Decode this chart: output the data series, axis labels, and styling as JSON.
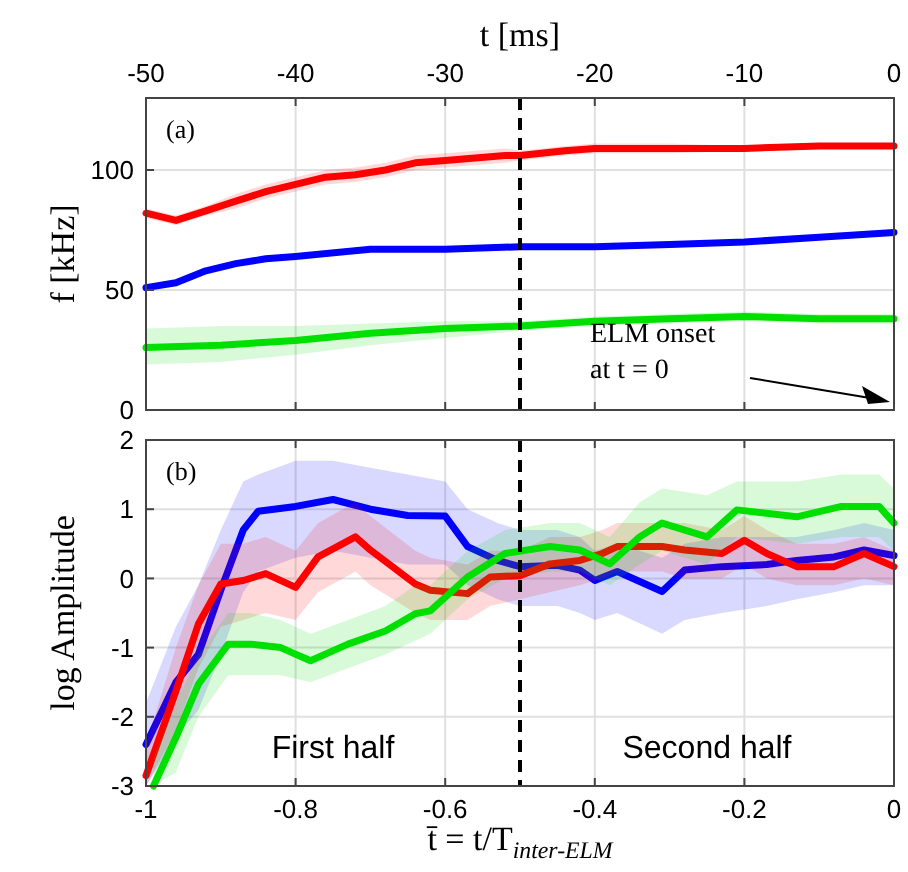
{
  "chart_data": [
    {
      "type": "line",
      "xlabel": "t [ms]",
      "ylabel": "f [kHz]",
      "xlim": [
        -50,
        0
      ],
      "xticks": [
        -50,
        -40,
        -30,
        -20,
        -10,
        0
      ],
      "ylim": [
        0,
        130
      ],
      "yticks": [
        0,
        50,
        100
      ],
      "grid": true,
      "line_style": "solid",
      "marker": "none",
      "annotations": [
        "(a)",
        "ELM onset\nat t = 0"
      ],
      "ref_lines": [
        {
          "axis": "x",
          "value": -25,
          "line_style": "dashed",
          "color": "#000000"
        }
      ],
      "series": [
        {
          "color": "#ff0000",
          "x": [
            -50,
            -48,
            -46,
            -44,
            -42,
            -40,
            -38,
            -36,
            -34,
            -32,
            -30,
            -28,
            -26,
            -25,
            -22,
            -20,
            -15,
            -10,
            -5,
            0
          ],
          "values": [
            82,
            79,
            83,
            87,
            91,
            94,
            97,
            98,
            100,
            103,
            104,
            105,
            106,
            106,
            108,
            109,
            109,
            109,
            110,
            110
          ],
          "lower": [
            80,
            77,
            81,
            84,
            88,
            91,
            94,
            95,
            97,
            100,
            101,
            102,
            103,
            104,
            106,
            107,
            107,
            108,
            109,
            109
          ],
          "upper": [
            84,
            81,
            85,
            90,
            94,
            97,
            100,
            101,
            103,
            106,
            107,
            108,
            109,
            108,
            110,
            111,
            111,
            110,
            111,
            111
          ]
        },
        {
          "color": "#0000ff",
          "x": [
            -50,
            -48,
            -46,
            -44,
            -42,
            -40,
            -35,
            -30,
            -25,
            -20,
            -15,
            -10,
            -5,
            0
          ],
          "values": [
            51,
            53,
            58,
            61,
            63,
            64,
            67,
            67,
            68,
            68,
            69,
            70,
            72,
            74
          ]
        },
        {
          "color": "#00e000",
          "x": [
            -50,
            -45,
            -40,
            -35,
            -30,
            -25,
            -20,
            -15,
            -10,
            -5,
            0
          ],
          "values": [
            26,
            27,
            29,
            32,
            34,
            35,
            37,
            38,
            39,
            38,
            38
          ],
          "lower": [
            19,
            20,
            23,
            27,
            30,
            33,
            35,
            36,
            37,
            36,
            36
          ],
          "upper": [
            34,
            35,
            35,
            36,
            37,
            37,
            39,
            40,
            41,
            40,
            40
          ]
        }
      ]
    },
    {
      "type": "line",
      "xlabel": "t̄ = t/T$_{inter-ELM}$",
      "ylabel": "log Amplitude",
      "xlim": [
        -1,
        0
      ],
      "xticks": [
        -1,
        -0.8,
        -0.6,
        -0.4,
        -0.2,
        0
      ],
      "ylim": [
        -3,
        2
      ],
      "yticks": [
        -3,
        -2,
        -1,
        0,
        1,
        2
      ],
      "grid": true,
      "line_style": "solid",
      "marker": "none",
      "annotations": [
        "(b)",
        "First half",
        "Second half"
      ],
      "ref_lines": [
        {
          "axis": "x",
          "value": -0.5,
          "line_style": "dashed",
          "color": "#000000"
        }
      ],
      "series": [
        {
          "color": "#0000ff",
          "x": [
            -1,
            -0.96,
            -0.93,
            -0.9,
            -0.87,
            -0.85,
            -0.8,
            -0.75,
            -0.7,
            -0.65,
            -0.6,
            -0.57,
            -0.53,
            -0.5,
            -0.45,
            -0.42,
            -0.4,
            -0.37,
            -0.31,
            -0.28,
            -0.23,
            -0.17,
            -0.13,
            -0.08,
            -0.04,
            0
          ],
          "values": [
            -2.4,
            -1.5,
            -1.1,
            -0.17,
            0.7,
            0.97,
            1.04,
            1.14,
            1.0,
            0.91,
            0.9,
            0.46,
            0.26,
            0.17,
            0.19,
            0.12,
            -0.03,
            0.1,
            -0.19,
            0.12,
            0.17,
            0.2,
            0.26,
            0.31,
            0.41,
            0.33
          ],
          "lower": [
            -3,
            -2.3,
            -1.9,
            -1.1,
            -0.2,
            0.1,
            0.3,
            0.4,
            0.3,
            0.2,
            0.2,
            -0.1,
            -0.3,
            -0.4,
            -0.4,
            -0.5,
            -0.6,
            -0.5,
            -0.8,
            -0.6,
            -0.5,
            -0.4,
            -0.3,
            -0.2,
            -0.1,
            -0.1
          ],
          "upper": [
            -1.8,
            -0.7,
            -0.1,
            0.7,
            1.4,
            1.5,
            1.7,
            1.7,
            1.6,
            1.5,
            1.4,
            1.0,
            0.8,
            0.7,
            0.7,
            0.6,
            0.4,
            0.5,
            0.3,
            0.5,
            0.6,
            0.6,
            0.6,
            0.7,
            0.8,
            0.7
          ]
        },
        {
          "color": "#ff0000",
          "x": [
            -1,
            -0.96,
            -0.93,
            -0.9,
            -0.87,
            -0.84,
            -0.8,
            -0.77,
            -0.72,
            -0.7,
            -0.64,
            -0.62,
            -0.57,
            -0.54,
            -0.5,
            -0.46,
            -0.42,
            -0.39,
            -0.37,
            -0.31,
            -0.28,
            -0.23,
            -0.2,
            -0.17,
            -0.13,
            -0.08,
            -0.04,
            0
          ],
          "values": [
            -2.85,
            -1.63,
            -0.66,
            -0.08,
            -0.03,
            0.07,
            -0.13,
            0.31,
            0.6,
            0.41,
            -0.08,
            -0.17,
            -0.22,
            0.02,
            0.04,
            0.21,
            0.26,
            0.36,
            0.46,
            0.46,
            0.41,
            0.36,
            0.55,
            0.36,
            0.17,
            0.17,
            0.36,
            0.17
          ],
          "lower": [
            -3,
            -2.2,
            -1.3,
            -0.7,
            -0.6,
            -0.5,
            -0.6,
            -0.2,
            0.1,
            -0.1,
            -0.5,
            -0.6,
            -0.6,
            -0.4,
            -0.3,
            -0.2,
            -0.1,
            0.0,
            0.1,
            0.1,
            0.0,
            0.0,
            0.2,
            0.0,
            -0.1,
            -0.1,
            0.0,
            -0.1
          ],
          "upper": [
            -2.4,
            -1.0,
            -0.1,
            0.5,
            0.5,
            0.6,
            0.4,
            0.8,
            1.1,
            0.9,
            0.4,
            0.3,
            0.2,
            0.4,
            0.4,
            0.6,
            0.6,
            0.7,
            0.8,
            0.8,
            0.8,
            0.7,
            0.9,
            0.7,
            0.5,
            0.5,
            0.6,
            0.4
          ]
        },
        {
          "color": "#00e000",
          "x": [
            -0.99,
            -0.96,
            -0.93,
            -0.89,
            -0.86,
            -0.82,
            -0.78,
            -0.73,
            -0.68,
            -0.64,
            -0.62,
            -0.57,
            -0.52,
            -0.46,
            -0.42,
            -0.38,
            -0.34,
            -0.31,
            -0.25,
            -0.21,
            -0.13,
            -0.07,
            -0.02,
            0
          ],
          "values": [
            -3.0,
            -2.3,
            -1.53,
            -0.95,
            -0.95,
            -1.0,
            -1.19,
            -0.95,
            -0.76,
            -0.51,
            -0.47,
            0.02,
            0.36,
            0.46,
            0.41,
            0.21,
            0.6,
            0.8,
            0.6,
            0.99,
            0.89,
            1.04,
            1.04,
            0.8
          ],
          "lower": [
            -3,
            -2.8,
            -2.0,
            -1.4,
            -1.4,
            -1.4,
            -1.5,
            -1.3,
            -1.1,
            -0.9,
            -0.8,
            -0.3,
            0.0,
            0.1,
            0.1,
            -0.1,
            0.2,
            0.4,
            0.2,
            0.6,
            0.5,
            0.6,
            0.6,
            0.4
          ],
          "upper": [
            -2.6,
            -1.8,
            -1.1,
            -0.5,
            -0.5,
            -0.6,
            -0.8,
            -0.6,
            -0.4,
            -0.1,
            -0.1,
            0.4,
            0.7,
            0.8,
            0.8,
            0.6,
            1.1,
            1.3,
            1.2,
            1.4,
            1.4,
            1.5,
            1.5,
            1.3
          ]
        }
      ]
    }
  ]
}
